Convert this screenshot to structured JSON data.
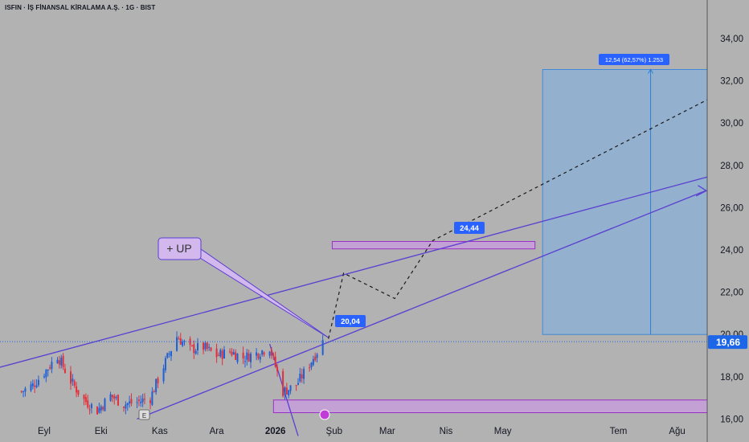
{
  "header": {
    "symbol_title": "ISFIN · İŞ FİNANSAL KİRALAMA A.Ş. · 1G · BIST"
  },
  "colors": {
    "background": "#b2b2b2",
    "up_candle": "#1f5fd6",
    "down_candle": "#e0303a",
    "trend_line": "#5a3fd1",
    "zone_fill": "#c99be0",
    "zone_border": "#9b2fc8",
    "projection_fill": "#8fb0d0",
    "projection_border": "#2d7fd8",
    "label_blue": "#2962ff",
    "price_label": "#1e66e8",
    "callout_fill": "#d3b8ee"
  },
  "chart_data": {
    "type": "candlestick",
    "symbol": "ISFIN",
    "exchange": "BIST",
    "timeframe": "1G",
    "y_axis": {
      "range": [
        16.0,
        34.8
      ],
      "ticks": [
        16.0,
        18.0,
        20.0,
        22.0,
        24.0,
        26.0,
        28.0,
        30.0,
        32.0,
        34.0
      ],
      "tick_labels": [
        "16,00",
        "18,00",
        "20,00",
        "22,00",
        "24,00",
        "26,00",
        "28,00",
        "30,00",
        "32,00",
        "34,00"
      ]
    },
    "x_axis": {
      "tick_labels": [
        "Eyl",
        "Eki",
        "Kas",
        "Ara",
        "2026",
        "Şub",
        "Mar",
        "Nis",
        "May",
        "Tem",
        "Ağu"
      ],
      "tick_dates": [
        "2025-09-01",
        "2025-10-01",
        "2025-11-01",
        "2025-12-01",
        "2026-01-01",
        "2026-02-01",
        "2026-03-01",
        "2026-04-01",
        "2026-05-01",
        "2026-07-01",
        "2026-08-01"
      ]
    },
    "last_price": {
      "value": 19.66,
      "label": "19,66"
    },
    "candles_approx_close": [
      {
        "date": "2025-08-20",
        "close": 17.3
      },
      {
        "date": "2025-08-26",
        "close": 17.6
      },
      {
        "date": "2025-09-02",
        "close": 18.3
      },
      {
        "date": "2025-09-08",
        "close": 19.0
      },
      {
        "date": "2025-09-15",
        "close": 17.8
      },
      {
        "date": "2025-09-22",
        "close": 16.9
      },
      {
        "date": "2025-09-29",
        "close": 16.4
      },
      {
        "date": "2025-10-06",
        "close": 17.1
      },
      {
        "date": "2025-10-13",
        "close": 16.7
      },
      {
        "date": "2025-10-20",
        "close": 16.8
      },
      {
        "date": "2025-10-27",
        "close": 17.0
      },
      {
        "date": "2025-11-03",
        "close": 18.5
      },
      {
        "date": "2025-11-10",
        "close": 19.9
      },
      {
        "date": "2025-11-17",
        "close": 19.3
      },
      {
        "date": "2025-11-24",
        "close": 19.4
      },
      {
        "date": "2025-12-01",
        "close": 19.0
      },
      {
        "date": "2025-12-08",
        "close": 19.2
      },
      {
        "date": "2025-12-15",
        "close": 18.9
      },
      {
        "date": "2025-12-22",
        "close": 19.1
      },
      {
        "date": "2025-12-29",
        "close": 19.4
      },
      {
        "date": "2026-01-05",
        "close": 17.3
      },
      {
        "date": "2026-01-12",
        "close": 17.6
      },
      {
        "date": "2026-01-19",
        "close": 18.6
      },
      {
        "date": "2026-01-26",
        "close": 19.66
      }
    ],
    "annotations": {
      "callout": "+ UP",
      "price_marker_1": "20,04",
      "price_marker_2": "24,44",
      "projection_label": "12,54 (62,57%) 1.253",
      "projection_box": {
        "from": 20.0,
        "to": 32.54
      },
      "upper_zone": {
        "from": 24.05,
        "to": 24.4
      },
      "lower_zone": {
        "from": 16.3,
        "to": 16.9
      },
      "projected_path": [
        {
          "date": "2026-01-29",
          "value": 19.8
        },
        {
          "date": "2026-02-06",
          "value": 22.9
        },
        {
          "date": "2026-03-05",
          "value": 21.7
        },
        {
          "date": "2026-03-25",
          "value": 24.44
        },
        {
          "date": "2026-09-01",
          "value": 31.8
        }
      ]
    }
  }
}
